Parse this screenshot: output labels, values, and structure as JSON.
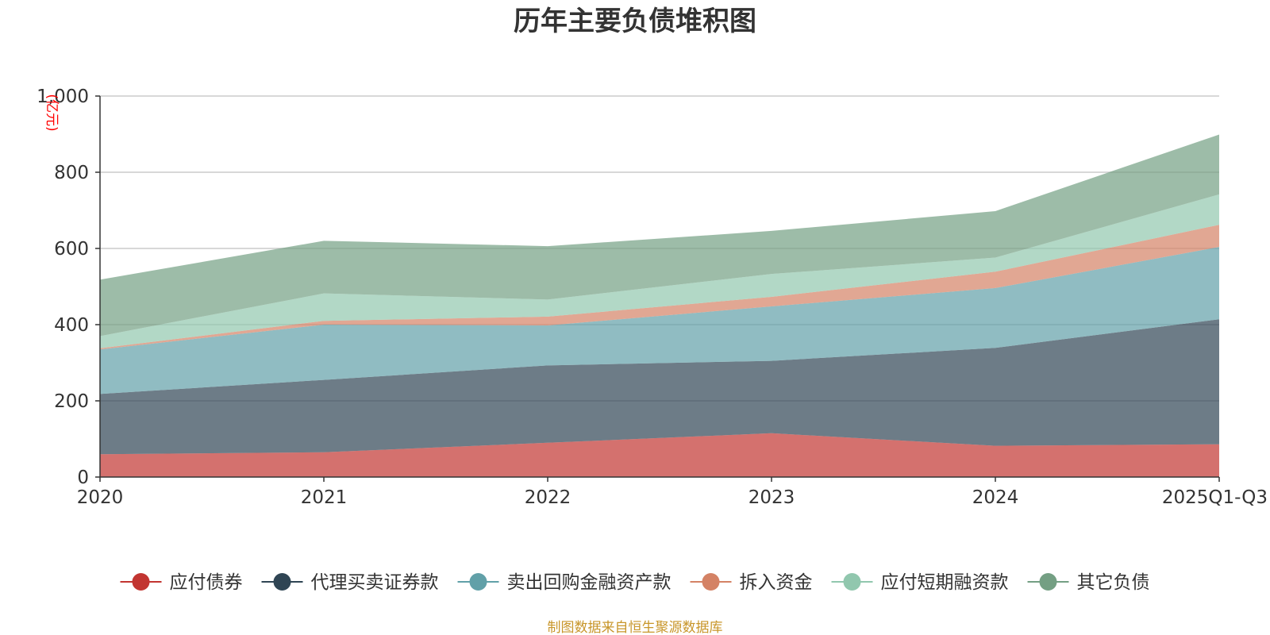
{
  "chart_data": {
    "type": "area",
    "stacked": true,
    "title": "历年主要负债堆积图",
    "unit_label": "(亿元)",
    "categories": [
      "2020",
      "2021",
      "2022",
      "2023",
      "2024",
      "2025Q1-Q3"
    ],
    "y_ticks": [
      "0",
      "200",
      "400",
      "600",
      "800",
      "1,000"
    ],
    "ylim": [
      0,
      1000
    ],
    "grid": true,
    "legend_position": "bottom",
    "series": [
      {
        "name": "应付债券",
        "color": "#c23531",
        "values": [
          60,
          65,
          90,
          115,
          82,
          86
        ]
      },
      {
        "name": "代理买卖证券款",
        "color": "#2f4554",
        "values": [
          158,
          190,
          203,
          190,
          257,
          328
        ]
      },
      {
        "name": "卖出回购金融资产款",
        "color": "#61a0a8",
        "values": [
          117,
          145,
          105,
          143,
          157,
          190
        ]
      },
      {
        "name": "拆入资金",
        "color": "#d48265",
        "values": [
          3,
          10,
          23,
          25,
          43,
          58
        ]
      },
      {
        "name": "应付短期融资款",
        "color": "#91c7ae",
        "values": [
          32,
          72,
          45,
          60,
          37,
          80
        ]
      },
      {
        "name": "其它负债",
        "color": "#749f83",
        "values": [
          148,
          138,
          140,
          113,
          122,
          157
        ]
      }
    ],
    "source_note": "制图数据来自恒生聚源数据库"
  }
}
